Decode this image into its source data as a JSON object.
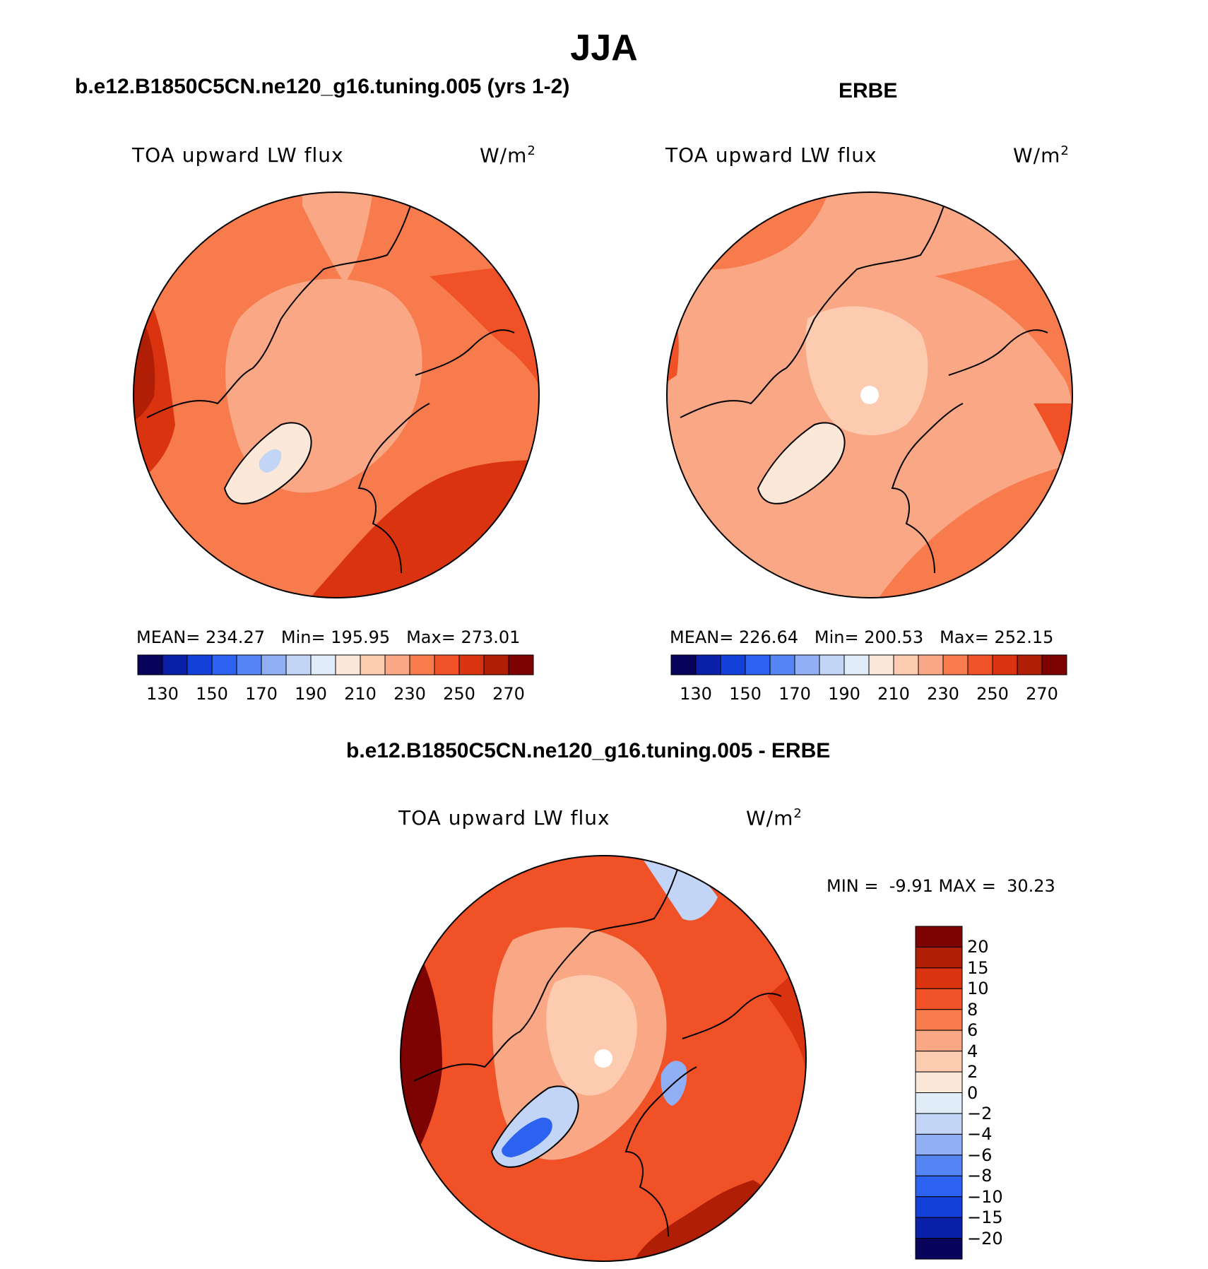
{
  "title": "JJA",
  "panels": [
    {
      "title": "b.e12.B1850C5CN.ne120_g16.tuning.005 (yrs 1-2)",
      "variable": "TOA upward LW flux",
      "units": "W/m",
      "units_exp": "2",
      "stats": {
        "mean_label": "MEAN=",
        "mean": "234.27",
        "min_label": "Min=",
        "min": "195.95",
        "max_label": "Max=",
        "max": "273.01"
      }
    },
    {
      "title": "ERBE",
      "variable": "TOA upward LW flux",
      "units": "W/m",
      "units_exp": "2",
      "stats": {
        "mean_label": "MEAN=",
        "mean": "226.64",
        "min_label": "Min=",
        "min": "200.53",
        "max_label": "Max=",
        "max": "252.15"
      }
    }
  ],
  "diff_panel": {
    "title": "b.e12.B1850C5CN.ne120_g16.tuning.005 - ERBE",
    "variable": "TOA upward LW flux",
    "units": "W/m",
    "units_exp": "2",
    "stats": {
      "min_label": "MIN =",
      "min": "-9.91",
      "max_label": "MAX =",
      "max": "30.23"
    }
  },
  "colorbar_abs": {
    "ticks": [
      "130",
      "150",
      "170",
      "190",
      "210",
      "230",
      "250",
      "270"
    ],
    "colors": [
      "#08045c",
      "#0b20a8",
      "#1240d8",
      "#2c62f0",
      "#5585f5",
      "#90aff5",
      "#c2d5f7",
      "#e1ecf9",
      "#fce8d8",
      "#fccbb0",
      "#f9a784",
      "#f87b4e",
      "#f05126",
      "#d9330f",
      "#b01e05",
      "#7d0303"
    ]
  },
  "colorbar_diff": {
    "ticks": [
      "20",
      "15",
      "10",
      "8",
      "6",
      "4",
      "2",
      "0",
      "−2",
      "−4",
      "−6",
      "−8",
      "−10",
      "−15",
      "−20"
    ],
    "colors": [
      "#7d0303",
      "#b01e05",
      "#d9330f",
      "#f05126",
      "#f87b4e",
      "#f9a784",
      "#fccbb0",
      "#fce8d8",
      "#e1ecf9",
      "#c2d5f7",
      "#90aff5",
      "#5585f5",
      "#2c62f0",
      "#1240d8",
      "#0b20a8",
      "#08045c"
    ]
  },
  "colors": {
    "land_outline": "#000000",
    "missing": "#ffffff"
  }
}
